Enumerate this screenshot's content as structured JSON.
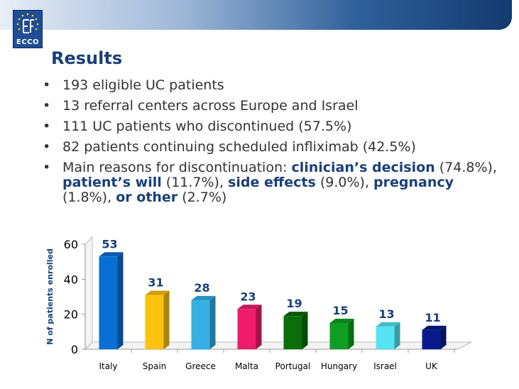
{
  "slide": {
    "logo_text": "ECCO",
    "title": "Results",
    "bullets": [
      "193 eligible UC patients",
      "13 referral centers across Europe and Israel",
      "111 UC patients who discontinued (57.5%)",
      "82 patients continuing scheduled infliximab (42.5%)"
    ],
    "reasons": {
      "intro": "Main reasons for discontinuation: ",
      "r1_label": "clinician’s decision",
      "r1_value": " (74.8%), ",
      "r2_label": "patient’s will",
      "r2_value": " (11.7%), ",
      "r3_label": "side effects",
      "r3_value": " (9.0%), ",
      "r4_label": "pregnancy",
      "r4_value": " (1.8%), ",
      "r5_label": "or other",
      "r5_value": " (2.7%)"
    }
  },
  "chart_data": {
    "type": "bar",
    "title": "",
    "xlabel": "",
    "ylabel": "N of patients enrolled",
    "categories": [
      "Italy",
      "Spain",
      "Greece",
      "Malta",
      "Portugal",
      "Hungary",
      "Israel",
      "UK"
    ],
    "values": [
      53,
      31,
      28,
      23,
      19,
      15,
      13,
      11
    ],
    "ylim": [
      0,
      60
    ],
    "yticks": [
      0,
      20,
      40,
      60
    ],
    "data_labels": true,
    "grid": false,
    "style": "3d",
    "colors": [
      "#0a6fd4",
      "#ffc20e",
      "#35b0e6",
      "#ee1c6a",
      "#0a6e0a",
      "#0e9e22",
      "#55e4f4",
      "#0a1a8c"
    ],
    "label_color": "#1a3f7a"
  }
}
